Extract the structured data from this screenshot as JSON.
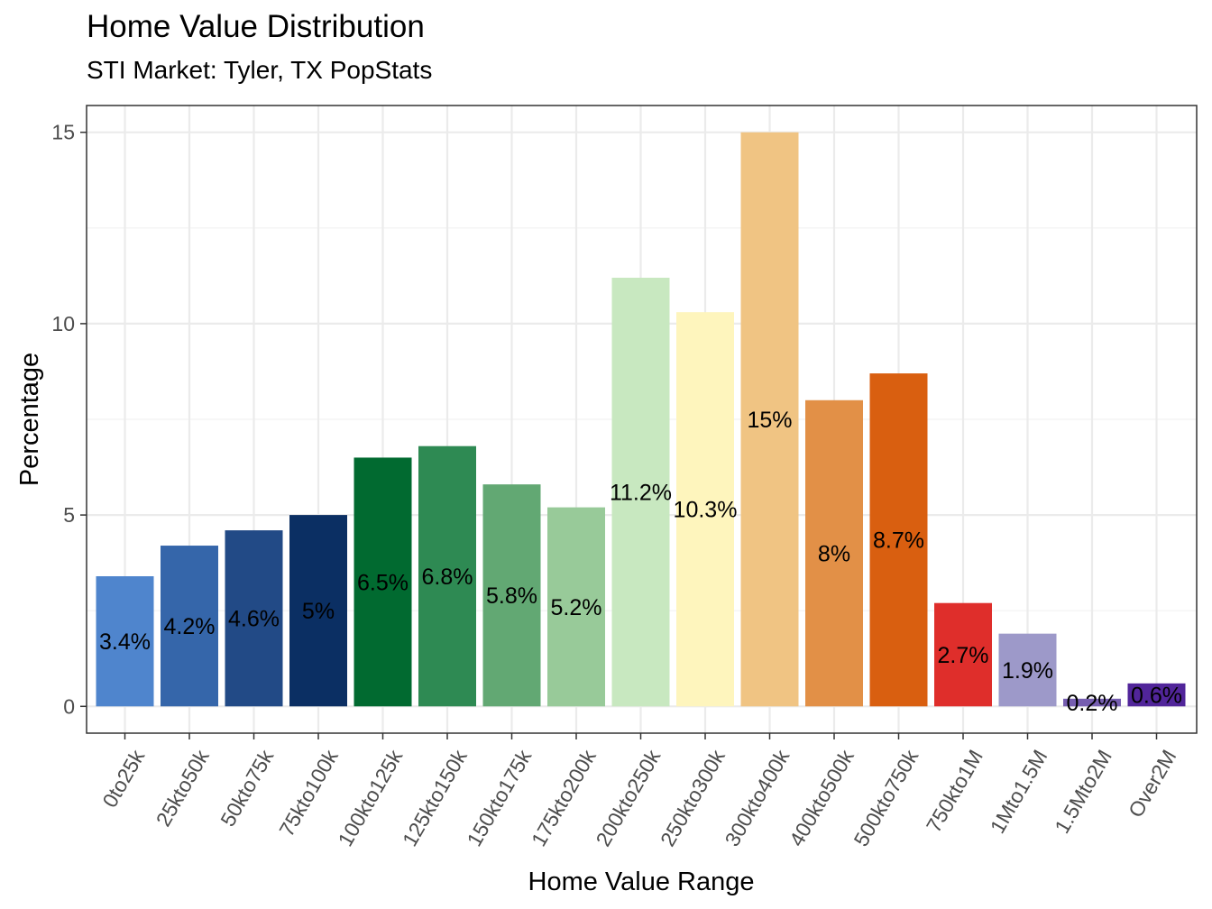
{
  "title": "Home Value Distribution",
  "subtitle": "STI Market: Tyler, TX PopStats",
  "chart_data": {
    "type": "bar",
    "title": "Home Value Distribution",
    "subtitle": "STI Market: Tyler, TX PopStats",
    "xlabel": "Home Value Range",
    "ylabel": "Percentage",
    "ylim": [
      -0.7,
      15.7
    ],
    "yticks": [
      0,
      5,
      10,
      15
    ],
    "grid": true,
    "legend": "none",
    "categories": [
      "0to25k",
      "25kto50k",
      "50kto75k",
      "75kto100k",
      "100kto125k",
      "125kto150k",
      "150kto175k",
      "175kto200k",
      "200kto250k",
      "250kto300k",
      "300kto400k",
      "400kto500k",
      "500kto750k",
      "750kto1M",
      "1Mto1.5M",
      "1.5Mto2M",
      "Over2M"
    ],
    "values": [
      3.4,
      4.2,
      4.6,
      5.0,
      6.5,
      6.8,
      5.8,
      5.2,
      11.2,
      10.3,
      15.0,
      8.0,
      8.7,
      2.7,
      1.9,
      0.2,
      0.6
    ],
    "data_labels": [
      "3.4%",
      "4.2%",
      "4.6%",
      "5%",
      "6.5%",
      "6.8%",
      "5.8%",
      "5.2%",
      "11.2%",
      "10.3%",
      "15%",
      "8%",
      "8.7%",
      "2.7%",
      "1.9%",
      "0.2%",
      "0.6%"
    ],
    "colors": [
      "#4f85cd",
      "#3566aa",
      "#224a86",
      "#0b2f63",
      "#016a30",
      "#2e8a53",
      "#62a873",
      "#98ca99",
      "#c8e8c0",
      "#fef5bd",
      "#f0c483",
      "#e29047",
      "#d95f10",
      "#df2e2b",
      "#9d99c9",
      "#765eb0",
      "#51259a"
    ]
  }
}
